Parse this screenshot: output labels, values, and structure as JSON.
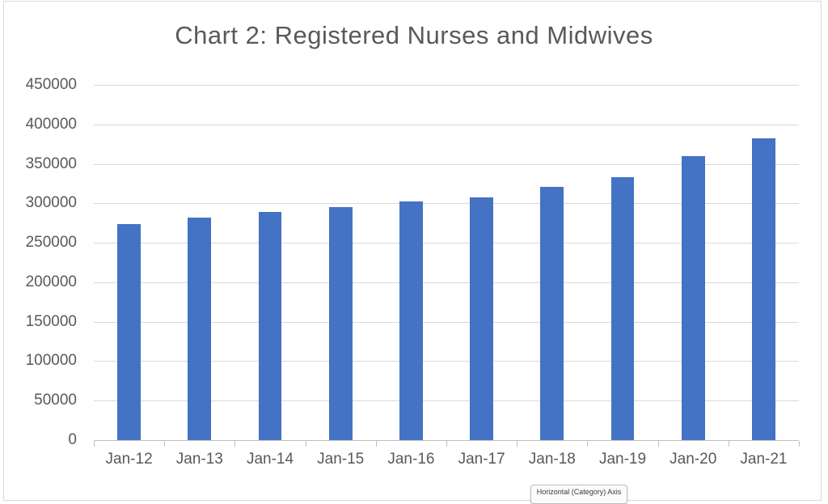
{
  "chart_data": {
    "type": "bar",
    "title": "Chart 2: Registered Nurses and Midwives",
    "categories": [
      "Jan-12",
      "Jan-13",
      "Jan-14",
      "Jan-15",
      "Jan-16",
      "Jan-17",
      "Jan-18",
      "Jan-19",
      "Jan-20",
      "Jan-21"
    ],
    "values": [
      274000,
      282000,
      289000,
      295000,
      302000,
      308000,
      321000,
      333000,
      360000,
      382000
    ],
    "xlabel": "",
    "ylabel": "",
    "ylim": [
      0,
      450000
    ],
    "ytick_step": 50000,
    "yticks": [
      0,
      50000,
      100000,
      150000,
      200000,
      250000,
      300000,
      350000,
      400000,
      450000
    ],
    "grid": true,
    "legend": "none",
    "bar_color": "#4472C4",
    "gridline_color": "#D9D9D9",
    "axis_color": "#BFBFBF",
    "label_color": "#595959"
  },
  "tooltip": {
    "label": "Horizontal (Category) Axis"
  }
}
